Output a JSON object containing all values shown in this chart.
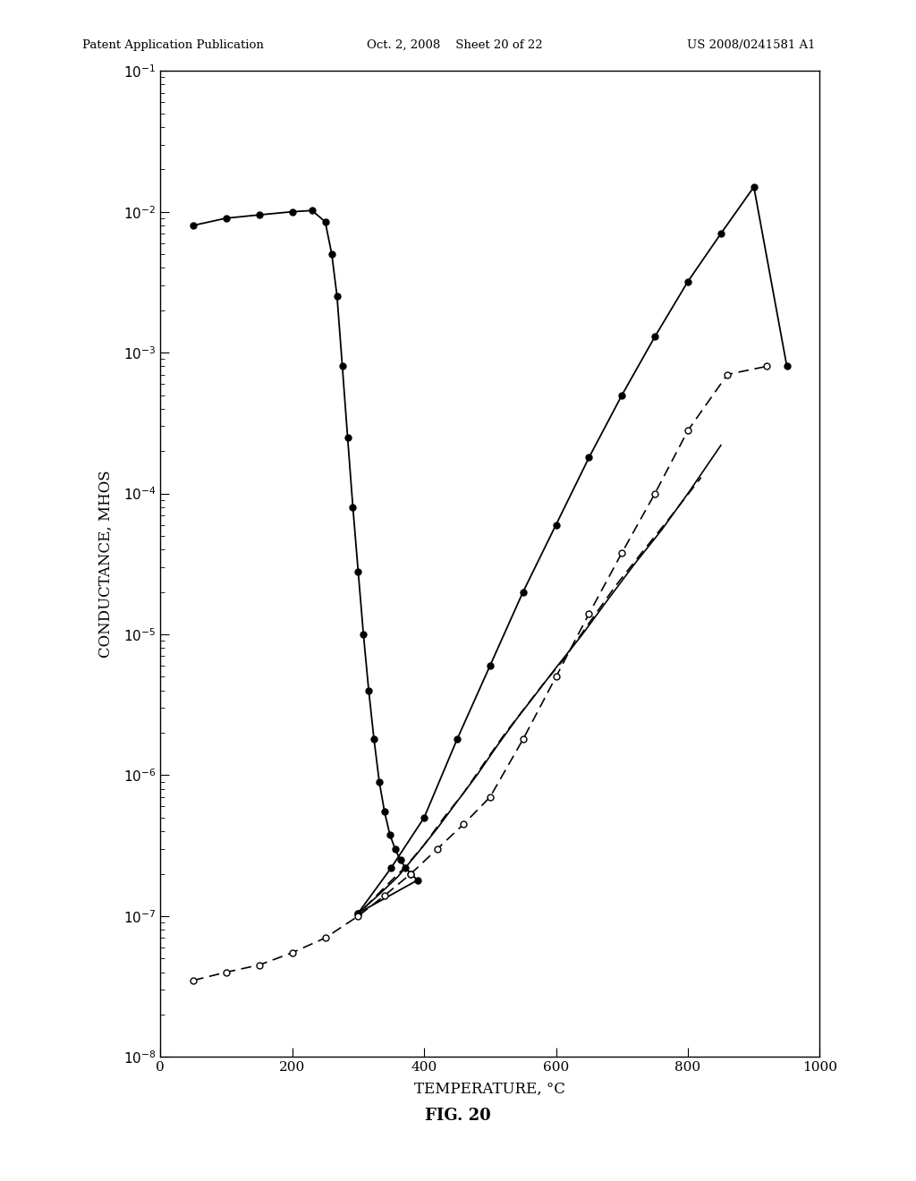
{
  "title": "FIG. 20",
  "xlabel": "TEMPERATURE, °C",
  "ylabel": "CONDUCTANCE, MHOS",
  "header_left": "Patent Application Publication",
  "header_center": "Oct. 2, 2008    Sheet 20 of 22",
  "header_right": "US 2008/0241581 A1",
  "xlim": [
    0,
    1000
  ],
  "ylim_log": [
    -8,
    -1
  ],
  "background_color": "#ffffff",
  "main_left_x": [
    50,
    100,
    150,
    200,
    230,
    250,
    260,
    268,
    276,
    284,
    292,
    300,
    308,
    316,
    324,
    332,
    340,
    348,
    356,
    364,
    372,
    380,
    390,
    300
  ],
  "main_left_y": [
    0.008,
    0.009,
    0.0095,
    0.01,
    0.0102,
    0.0085,
    0.005,
    0.0025,
    0.0008,
    0.00025,
    8e-05,
    2.8e-05,
    1e-05,
    4e-06,
    1.8e-06,
    9e-07,
    5.5e-07,
    3.8e-07,
    3e-07,
    2.5e-07,
    2.2e-07,
    2e-07,
    1.8e-07,
    1.05e-07
  ],
  "main_right_x": [
    300,
    350,
    400,
    450,
    500,
    550,
    600,
    650,
    700,
    750,
    800,
    850,
    900,
    950
  ],
  "main_right_y": [
    1.05e-07,
    2.2e-07,
    5e-07,
    1.8e-06,
    6e-06,
    2e-05,
    6e-05,
    0.00018,
    0.0005,
    0.0013,
    0.0032,
    0.007,
    0.015,
    0.0008
  ],
  "open_dashed_x": [
    50,
    100,
    150,
    200,
    250,
    300,
    340,
    380,
    420,
    460,
    500,
    550,
    600,
    650,
    700,
    750,
    800,
    860,
    920
  ],
  "open_dashed_y": [
    3.5e-08,
    4e-08,
    4.5e-08,
    5.5e-08,
    7e-08,
    1e-07,
    1.4e-07,
    2e-07,
    3e-07,
    4.5e-07,
    7e-07,
    1.8e-06,
    5e-06,
    1.4e-05,
    3.8e-05,
    0.0001,
    0.00028,
    0.0007,
    0.0008
  ],
  "inner_solid_x": [
    305,
    330,
    360,
    390,
    420,
    450,
    480,
    510,
    540,
    570,
    600,
    640,
    680,
    720,
    760,
    800,
    850
  ],
  "inner_solid_y": [
    1.1e-07,
    1.4e-07,
    1.9e-07,
    2.8e-07,
    4.2e-07,
    6.5e-07,
    1e-06,
    1.6e-06,
    2.5e-06,
    3.8e-06,
    5.8e-06,
    1e-05,
    1.8e-05,
    3.2e-05,
    5.5e-05,
    0.0001,
    0.00022
  ],
  "outer_dashed_x": [
    310,
    340,
    370,
    400,
    430,
    460,
    490,
    520,
    550,
    580,
    610,
    650,
    690,
    730,
    770,
    820
  ],
  "outer_dashed_y": [
    1.15e-07,
    1.6e-07,
    2.2e-07,
    3.2e-07,
    5e-07,
    7.5e-07,
    1.2e-06,
    1.9e-06,
    2.9e-06,
    4.4e-06,
    6.5e-06,
    1.2e-05,
    2.2e-05,
    3.8e-05,
    6.5e-05,
    0.00013
  ]
}
